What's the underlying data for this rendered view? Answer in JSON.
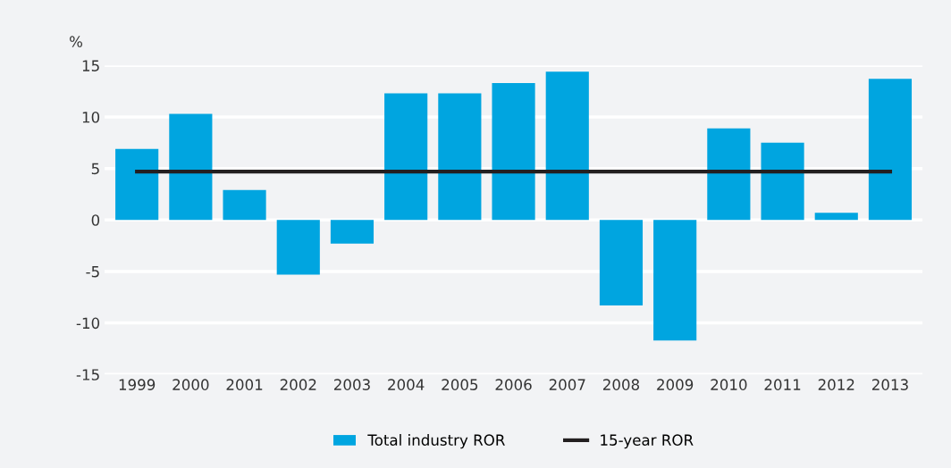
{
  "chart_data": {
    "type": "bar",
    "ylabel": "%",
    "categories": [
      "1999",
      "2000",
      "2001",
      "2002",
      "2003",
      "2004",
      "2005",
      "2006",
      "2007",
      "2008",
      "2009",
      "2010",
      "2011",
      "2012",
      "2013"
    ],
    "series": [
      {
        "name": "Total industry ROR",
        "color": "#00a5e0",
        "values": [
          6.9,
          10.3,
          2.9,
          -5.3,
          -2.3,
          12.3,
          12.3,
          13.3,
          14.4,
          -8.3,
          -11.7,
          8.9,
          7.5,
          0.7,
          13.7
        ]
      },
      {
        "name": "15-year ROR",
        "type": "line",
        "color": "#231f20",
        "values": [
          4.7,
          4.7,
          4.7,
          4.7,
          4.7,
          4.7,
          4.7,
          4.7,
          4.7,
          4.7,
          4.7,
          4.7,
          4.7,
          4.7,
          4.7
        ]
      }
    ],
    "ylim": [
      -15,
      15
    ],
    "yticks": [
      -15,
      -10,
      -5,
      0,
      5,
      10,
      15
    ],
    "grid": "y",
    "legend": "bottom"
  }
}
